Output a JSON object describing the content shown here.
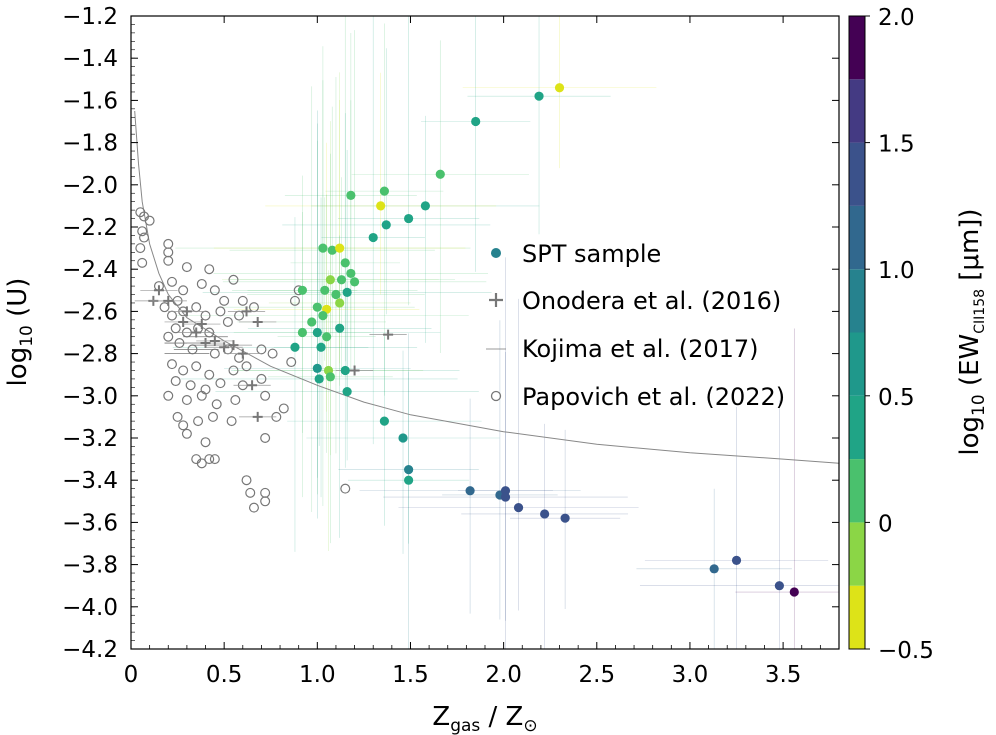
{
  "chart_data": {
    "type": "scatter",
    "xlabel": "Z",
    "xlabel_sub": "gas",
    "xlabel_tail": " / Z",
    "xlabel_sym": "⊙",
    "ylabel": "log",
    "ylabel_sub": "10",
    "ylabel_tail": " (U)",
    "colorbar_label": "log",
    "colorbar_label_sub": "10",
    "colorbar_label_mid": " (EW",
    "colorbar_label_sub2": "CII158",
    "colorbar_label_tail": " [μm])",
    "xlim": [
      0,
      3.8
    ],
    "ylim": [
      -4.2,
      -1.2
    ],
    "xticks": [
      0,
      0.5,
      1.0,
      1.5,
      2.0,
      2.5,
      3.0,
      3.5
    ],
    "xtick_labels": [
      "0",
      "0.5",
      "1.0",
      "1.5",
      "2.0",
      "2.5",
      "3.0",
      "3.5"
    ],
    "yticks": [
      -4.2,
      -4.0,
      -3.8,
      -3.6,
      -3.4,
      -3.2,
      -3.0,
      -2.8,
      -2.6,
      -2.4,
      -2.2,
      -2.0,
      -1.8,
      -1.6,
      -1.4,
      -1.2
    ],
    "ytick_labels": [
      "−4.2",
      "−4.0",
      "−3.8",
      "−3.6",
      "−3.4",
      "−3.2",
      "−3.0",
      "−2.8",
      "−2.6",
      "−2.4",
      "−2.2",
      "−2.0",
      "−1.8",
      "−1.6",
      "−1.4",
      "−1.2"
    ],
    "colorbar": {
      "range": [
        -0.5,
        2.0
      ],
      "ticks": [
        -0.5,
        0,
        0.5,
        1.0,
        1.5,
        2.0
      ],
      "tick_labels": [
        "−0.5",
        "0",
        "0.5",
        "1.0",
        "1.5",
        "2.0"
      ],
      "bins": [
        {
          "from": -0.5,
          "to": -0.25,
          "color": "#dde318"
        },
        {
          "from": -0.25,
          "to": 0.0,
          "color": "#8bd646"
        },
        {
          "from": 0.0,
          "to": 0.25,
          "color": "#4ac16d"
        },
        {
          "from": 0.25,
          "to": 0.5,
          "color": "#20a486"
        },
        {
          "from": 0.5,
          "to": 0.75,
          "color": "#1f988b"
        },
        {
          "from": 0.75,
          "to": 1.0,
          "color": "#26828e"
        },
        {
          "from": 1.0,
          "to": 1.25,
          "color": "#31688e"
        },
        {
          "from": 1.25,
          "to": 1.5,
          "color": "#3b528b"
        },
        {
          "from": 1.5,
          "to": 1.75,
          "color": "#443a83"
        },
        {
          "from": 1.75,
          "to": 2.0,
          "color": "#440154"
        }
      ]
    },
    "legend": {
      "position": "center-right",
      "entries": [
        "SPT sample",
        "Onodera et al. (2016)",
        "Kojima et al. (2017)",
        "Papovich et al. (2022)"
      ]
    },
    "curve": {
      "description": "model relation",
      "points": [
        [
          0.02,
          -1.65
        ],
        [
          0.04,
          -1.9
        ],
        [
          0.06,
          -2.08
        ],
        [
          0.1,
          -2.28
        ],
        [
          0.15,
          -2.42
        ],
        [
          0.2,
          -2.52
        ],
        [
          0.3,
          -2.63
        ],
        [
          0.5,
          -2.74
        ],
        [
          0.75,
          -2.86
        ],
        [
          1.0,
          -2.95
        ],
        [
          1.25,
          -3.03
        ],
        [
          1.5,
          -3.09
        ],
        [
          2.0,
          -3.17
        ],
        [
          2.5,
          -3.23
        ],
        [
          3.0,
          -3.27
        ],
        [
          3.5,
          -3.3
        ],
        [
          3.8,
          -3.32
        ]
      ]
    },
    "series": [
      {
        "name": "SPT sample",
        "points": [
          {
            "x": 2.3,
            "y": -1.54,
            "c": -0.35
          },
          {
            "x": 2.19,
            "y": -1.58,
            "c": 0.3
          },
          {
            "x": 1.85,
            "y": -1.7,
            "c": 0.3
          },
          {
            "x": 1.66,
            "y": -1.95,
            "c": 0.2
          },
          {
            "x": 1.58,
            "y": -2.1,
            "c": 0.3
          },
          {
            "x": 1.49,
            "y": -2.16,
            "c": 0.3
          },
          {
            "x": 1.37,
            "y": -2.19,
            "c": 0.3
          },
          {
            "x": 1.3,
            "y": -2.25,
            "c": 0.4
          },
          {
            "x": 1.36,
            "y": -2.03,
            "c": 0.1
          },
          {
            "x": 1.18,
            "y": -2.05,
            "c": 0.0
          },
          {
            "x": 1.34,
            "y": -2.1,
            "c": -0.35
          },
          {
            "x": 1.03,
            "y": -2.3,
            "c": 0.05
          },
          {
            "x": 1.08,
            "y": -2.31,
            "c": 0.2
          },
          {
            "x": 1.12,
            "y": -2.3,
            "c": -0.3
          },
          {
            "x": 1.15,
            "y": -2.37,
            "c": 0.15
          },
          {
            "x": 1.18,
            "y": -2.42,
            "c": 0.2
          },
          {
            "x": 1.07,
            "y": -2.45,
            "c": -0.1
          },
          {
            "x": 1.13,
            "y": -2.45,
            "c": 0.05
          },
          {
            "x": 1.04,
            "y": -2.5,
            "c": 0.1
          },
          {
            "x": 1.1,
            "y": -2.52,
            "c": 0.0
          },
          {
            "x": 1.16,
            "y": -2.51,
            "c": 0.25
          },
          {
            "x": 1.0,
            "y": -2.58,
            "c": 0.2
          },
          {
            "x": 1.05,
            "y": -2.59,
            "c": -0.35
          },
          {
            "x": 1.12,
            "y": -2.56,
            "c": -0.1
          },
          {
            "x": 0.97,
            "y": -2.65,
            "c": 0.05
          },
          {
            "x": 1.03,
            "y": -2.62,
            "c": 0.15
          },
          {
            "x": 1.0,
            "y": -2.7,
            "c": 0.3
          },
          {
            "x": 1.05,
            "y": -2.72,
            "c": 0.2
          },
          {
            "x": 0.92,
            "y": -2.7,
            "c": 0.15
          },
          {
            "x": 0.88,
            "y": -2.77,
            "c": 0.3
          },
          {
            "x": 1.02,
            "y": -2.77,
            "c": 0.35
          },
          {
            "x": 1.12,
            "y": -2.68,
            "c": 0.35
          },
          {
            "x": 1.0,
            "y": -2.87,
            "c": 0.5
          },
          {
            "x": 1.06,
            "y": -2.88,
            "c": -0.1
          },
          {
            "x": 1.01,
            "y": -2.92,
            "c": 0.3
          },
          {
            "x": 1.07,
            "y": -2.91,
            "c": 0.2
          },
          {
            "x": 1.15,
            "y": -2.88,
            "c": 0.3
          },
          {
            "x": 1.16,
            "y": -2.98,
            "c": 0.3
          },
          {
            "x": 0.92,
            "y": -2.5,
            "c": 0.1
          },
          {
            "x": 1.2,
            "y": -2.46,
            "c": 0.2
          },
          {
            "x": 1.36,
            "y": -3.12,
            "c": 0.3
          },
          {
            "x": 1.46,
            "y": -3.2,
            "c": 0.5
          },
          {
            "x": 1.49,
            "y": -3.35,
            "c": 0.9
          },
          {
            "x": 1.49,
            "y": -3.4,
            "c": 0.3
          },
          {
            "x": 1.82,
            "y": -3.45,
            "c": 1.2
          },
          {
            "x": 1.98,
            "y": -3.47,
            "c": 1.1
          },
          {
            "x": 2.01,
            "y": -3.45,
            "c": 1.3
          },
          {
            "x": 2.01,
            "y": -3.48,
            "c": 1.3
          },
          {
            "x": 2.08,
            "y": -3.53,
            "c": 1.3
          },
          {
            "x": 2.22,
            "y": -3.56,
            "c": 1.3
          },
          {
            "x": 2.33,
            "y": -3.58,
            "c": 1.3
          },
          {
            "x": 3.13,
            "y": -3.82,
            "c": 1.1
          },
          {
            "x": 3.25,
            "y": -3.78,
            "c": 1.3
          },
          {
            "x": 3.48,
            "y": -3.9,
            "c": 1.3
          },
          {
            "x": 3.56,
            "y": -3.93,
            "c": 1.8
          }
        ]
      },
      {
        "name": "Onodera et al. (2016)",
        "points": [
          {
            "x": 0.15,
            "y": -2.5
          },
          {
            "x": 0.12,
            "y": -2.55
          },
          {
            "x": 0.2,
            "y": -2.55
          },
          {
            "x": 0.28,
            "y": -2.65
          },
          {
            "x": 0.35,
            "y": -2.7
          },
          {
            "x": 0.4,
            "y": -2.75
          },
          {
            "x": 0.45,
            "y": -2.74
          },
          {
            "x": 0.5,
            "y": -2.77
          },
          {
            "x": 0.55,
            "y": -2.76
          },
          {
            "x": 0.62,
            "y": -2.6
          },
          {
            "x": 0.68,
            "y": -2.65
          },
          {
            "x": 0.6,
            "y": -2.8
          },
          {
            "x": 0.65,
            "y": -2.95
          },
          {
            "x": 0.68,
            "y": -3.1
          },
          {
            "x": 1.38,
            "y": -2.71
          },
          {
            "x": 1.2,
            "y": -2.88
          },
          {
            "x": 0.3,
            "y": -2.6
          },
          {
            "x": 0.38,
            "y": -2.66
          }
        ]
      },
      {
        "name": "Kojima et al. (2017)",
        "points": [
          {
            "x": 0.3,
            "y": -2.75
          },
          {
            "x": 0.35,
            "y": -2.78
          },
          {
            "x": 0.4,
            "y": -2.72
          },
          {
            "x": 0.45,
            "y": -2.76
          },
          {
            "x": 0.3,
            "y": -2.8
          }
        ]
      },
      {
        "name": "Papovich et al. (2022)",
        "points": [
          {
            "x": 0.05,
            "y": -2.13
          },
          {
            "x": 0.07,
            "y": -2.15
          },
          {
            "x": 0.1,
            "y": -2.17
          },
          {
            "x": 0.06,
            "y": -2.22
          },
          {
            "x": 0.07,
            "y": -2.25
          },
          {
            "x": 0.05,
            "y": -2.3
          },
          {
            "x": 0.06,
            "y": -2.37
          },
          {
            "x": 0.2,
            "y": -2.28
          },
          {
            "x": 0.2,
            "y": -2.32
          },
          {
            "x": 0.2,
            "y": -2.36
          },
          {
            "x": 0.15,
            "y": -2.48
          },
          {
            "x": 0.22,
            "y": -2.46
          },
          {
            "x": 0.28,
            "y": -2.5
          },
          {
            "x": 0.3,
            "y": -2.39
          },
          {
            "x": 0.42,
            "y": -2.4
          },
          {
            "x": 0.38,
            "y": -2.47
          },
          {
            "x": 0.55,
            "y": -2.45
          },
          {
            "x": 0.45,
            "y": -2.5
          },
          {
            "x": 0.5,
            "y": -2.55
          },
          {
            "x": 0.6,
            "y": -2.55
          },
          {
            "x": 0.66,
            "y": -2.58
          },
          {
            "x": 0.25,
            "y": -2.55
          },
          {
            "x": 0.18,
            "y": -2.58
          },
          {
            "x": 0.22,
            "y": -2.62
          },
          {
            "x": 0.28,
            "y": -2.6
          },
          {
            "x": 0.35,
            "y": -2.58
          },
          {
            "x": 0.4,
            "y": -2.62
          },
          {
            "x": 0.48,
            "y": -2.6
          },
          {
            "x": 0.52,
            "y": -2.65
          },
          {
            "x": 0.58,
            "y": -2.62
          },
          {
            "x": 0.24,
            "y": -2.68
          },
          {
            "x": 0.3,
            "y": -2.7
          },
          {
            "x": 0.36,
            "y": -2.68
          },
          {
            "x": 0.42,
            "y": -2.7
          },
          {
            "x": 0.2,
            "y": -2.72
          },
          {
            "x": 0.26,
            "y": -2.75
          },
          {
            "x": 0.33,
            "y": -2.78
          },
          {
            "x": 0.45,
            "y": -2.8
          },
          {
            "x": 0.52,
            "y": -2.78
          },
          {
            "x": 0.58,
            "y": -2.82
          },
          {
            "x": 0.7,
            "y": -2.78
          },
          {
            "x": 0.76,
            "y": -2.8
          },
          {
            "x": 0.22,
            "y": -2.85
          },
          {
            "x": 0.28,
            "y": -2.88
          },
          {
            "x": 0.35,
            "y": -2.86
          },
          {
            "x": 0.42,
            "y": -2.9
          },
          {
            "x": 0.55,
            "y": -2.88
          },
          {
            "x": 0.62,
            "y": -2.86
          },
          {
            "x": 0.24,
            "y": -2.93
          },
          {
            "x": 0.32,
            "y": -2.95
          },
          {
            "x": 0.4,
            "y": -2.97
          },
          {
            "x": 0.48,
            "y": -2.94
          },
          {
            "x": 0.6,
            "y": -2.95
          },
          {
            "x": 0.7,
            "y": -2.92
          },
          {
            "x": 0.2,
            "y": -3.0
          },
          {
            "x": 0.3,
            "y": -3.02
          },
          {
            "x": 0.38,
            "y": -3.0
          },
          {
            "x": 0.46,
            "y": -3.04
          },
          {
            "x": 0.56,
            "y": -3.02
          },
          {
            "x": 0.72,
            "y": -3.0
          },
          {
            "x": 0.78,
            "y": -3.1
          },
          {
            "x": 0.82,
            "y": -3.06
          },
          {
            "x": 0.25,
            "y": -3.1
          },
          {
            "x": 0.28,
            "y": -3.14
          },
          {
            "x": 0.36,
            "y": -3.12
          },
          {
            "x": 0.44,
            "y": -3.1
          },
          {
            "x": 0.54,
            "y": -3.12
          },
          {
            "x": 0.3,
            "y": -3.18
          },
          {
            "x": 0.4,
            "y": -3.22
          },
          {
            "x": 0.72,
            "y": -3.2
          },
          {
            "x": 0.35,
            "y": -3.3
          },
          {
            "x": 0.42,
            "y": -3.3
          },
          {
            "x": 0.45,
            "y": -3.3
          },
          {
            "x": 0.38,
            "y": -3.32
          },
          {
            "x": 0.62,
            "y": -3.4
          },
          {
            "x": 0.64,
            "y": -3.46
          },
          {
            "x": 0.72,
            "y": -3.46
          },
          {
            "x": 0.66,
            "y": -3.53
          },
          {
            "x": 0.72,
            "y": -3.5
          },
          {
            "x": 0.86,
            "y": -2.84
          },
          {
            "x": 0.9,
            "y": -2.5
          },
          {
            "x": 1.15,
            "y": -3.44
          },
          {
            "x": 0.88,
            "y": -2.55
          }
        ]
      }
    ]
  }
}
